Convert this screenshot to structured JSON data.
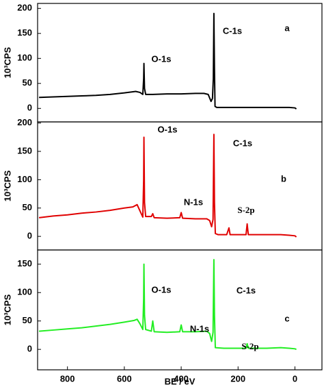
{
  "chart_data": [
    {
      "type": "line",
      "y_label": "10³CPS",
      "xlim": [
        905,
        -95
      ],
      "ylim": [
        -27,
        210
      ],
      "yticks": [
        0,
        50,
        100,
        150,
        200
      ],
      "x": [
        900,
        850,
        800,
        750,
        700,
        650,
        600,
        560,
        545,
        535,
        532,
        531,
        529,
        525,
        500,
        450,
        400,
        350,
        320,
        305,
        295,
        290,
        287,
        285,
        283,
        281,
        275,
        250,
        200,
        150,
        100,
        50,
        20,
        0,
        -5
      ],
      "series": [
        {
          "color": "#000000",
          "values": [
            22,
            23,
            24,
            25,
            26,
            28,
            31,
            34,
            32,
            28,
            60,
            90,
            40,
            28,
            28,
            29,
            29,
            30,
            30,
            28,
            14,
            20,
            60,
            190,
            80,
            4,
            2,
            2,
            2,
            2,
            2,
            2,
            2,
            1,
            -1
          ]
        }
      ],
      "annotations": [
        "a",
        "O-1s",
        "C-1s"
      ]
    },
    {
      "type": "line",
      "y_label": "10³CPS",
      "xlim": [
        905,
        -95
      ],
      "ylim": [
        -24,
        202
      ],
      "yticks": [
        0,
        50,
        100,
        150,
        200
      ],
      "x": [
        900,
        850,
        800,
        750,
        700,
        650,
        600,
        570,
        555,
        545,
        535,
        532,
        531,
        529,
        525,
        505,
        500,
        495,
        450,
        405,
        400,
        395,
        350,
        310,
        300,
        293,
        288,
        285,
        283,
        280,
        270,
        240,
        232,
        228,
        200,
        172,
        168,
        164,
        150,
        100,
        50,
        20,
        0,
        -5
      ],
      "series": [
        {
          "color": "#e00000",
          "values": [
            33,
            36,
            38,
            41,
            43,
            46,
            50,
            52,
            56,
            45,
            34,
            100,
            175,
            60,
            35,
            35,
            40,
            33,
            32,
            33,
            42,
            32,
            31,
            31,
            28,
            17,
            30,
            180,
            60,
            5,
            3,
            3,
            15,
            3,
            3,
            3,
            22,
            3,
            3,
            3,
            3,
            2,
            1,
            -1
          ]
        }
      ],
      "annotations": [
        "O-1s",
        "C-1s",
        "b",
        "N-1s",
        "S-2p"
      ]
    },
    {
      "type": "line",
      "y_label": "10³CPS",
      "x_label": "BE / eV",
      "xlim": [
        905,
        -95
      ],
      "ylim": [
        -36,
        175
      ],
      "yticks": [
        0,
        50,
        100,
        150
      ],
      "xticks": [
        800,
        600,
        400,
        200,
        0
      ],
      "x": [
        900,
        850,
        800,
        750,
        700,
        650,
        600,
        565,
        555,
        545,
        535,
        532,
        531,
        529,
        525,
        505,
        500,
        495,
        450,
        405,
        400,
        395,
        350,
        310,
        300,
        293,
        288,
        285,
        283,
        280,
        250,
        200,
        172,
        168,
        164,
        100,
        50,
        20,
        0,
        -5
      ],
      "series": [
        {
          "color": "#22ee22",
          "values": [
            32,
            34,
            36,
            38,
            41,
            44,
            48,
            51,
            53,
            45,
            35,
            90,
            150,
            60,
            35,
            32,
            50,
            31,
            30,
            31,
            43,
            31,
            31,
            32,
            28,
            14,
            30,
            158,
            60,
            3,
            2,
            2,
            2,
            10,
            2,
            2,
            3,
            2,
            1,
            0
          ]
        }
      ],
      "annotations": [
        "O-1s",
        "C-1s",
        "c",
        "N-1s",
        "S-2p"
      ]
    }
  ]
}
